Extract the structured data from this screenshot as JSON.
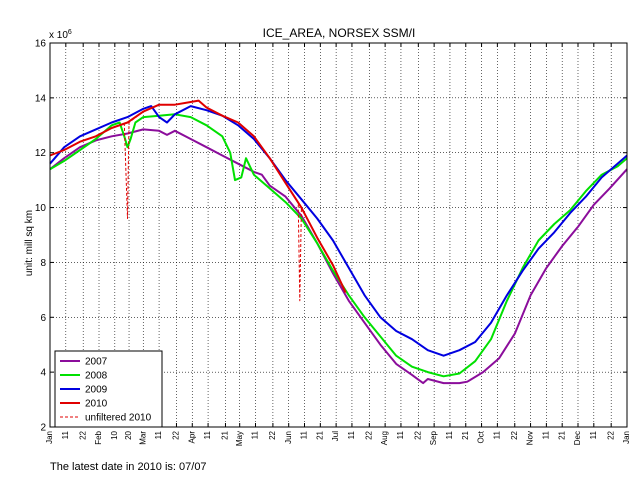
{
  "chart_data": {
    "type": "line",
    "title": "ICE_AREA, NORSEX SSM/I",
    "ylabel": "unit: mill sq km",
    "y_exponent_label": "x 10",
    "y_exponent_sup": "6",
    "xlabel": "",
    "xlim": [
      1,
      366
    ],
    "ylim": [
      2,
      16
    ],
    "yticks": [
      2,
      4,
      6,
      8,
      10,
      12,
      14,
      16
    ],
    "grid": true,
    "legend_placement": "bottom-left",
    "x_ticks": [
      {
        "x": 1,
        "label": "Jan",
        "major": true
      },
      {
        "x": 11,
        "label": "11",
        "major": false
      },
      {
        "x": 22,
        "label": "22",
        "major": false
      },
      {
        "x": 32,
        "label": "Feb",
        "major": true
      },
      {
        "x": 42,
        "label": "10",
        "major": false
      },
      {
        "x": 51,
        "label": "20",
        "major": false
      },
      {
        "x": 60,
        "label": "Mar",
        "major": true
      },
      {
        "x": 70,
        "label": "11",
        "major": false
      },
      {
        "x": 81,
        "label": "22",
        "major": false
      },
      {
        "x": 91,
        "label": "Apr",
        "major": true
      },
      {
        "x": 101,
        "label": "11",
        "major": false
      },
      {
        "x": 112,
        "label": "21",
        "major": false
      },
      {
        "x": 121,
        "label": "May",
        "major": true
      },
      {
        "x": 131,
        "label": "11",
        "major": false
      },
      {
        "x": 142,
        "label": "22",
        "major": false
      },
      {
        "x": 152,
        "label": "Jun",
        "major": true
      },
      {
        "x": 162,
        "label": "11",
        "major": false
      },
      {
        "x": 172,
        "label": "21",
        "major": false
      },
      {
        "x": 182,
        "label": "Jul",
        "major": true
      },
      {
        "x": 192,
        "label": "11",
        "major": false
      },
      {
        "x": 203,
        "label": "22",
        "major": false
      },
      {
        "x": 213,
        "label": "Aug",
        "major": true
      },
      {
        "x": 223,
        "label": "11",
        "major": false
      },
      {
        "x": 234,
        "label": "22",
        "major": false
      },
      {
        "x": 244,
        "label": "Sep",
        "major": true
      },
      {
        "x": 254,
        "label": "11",
        "major": false
      },
      {
        "x": 264,
        "label": "21",
        "major": false
      },
      {
        "x": 274,
        "label": "Oct",
        "major": true
      },
      {
        "x": 284,
        "label": "11",
        "major": false
      },
      {
        "x": 295,
        "label": "22",
        "major": false
      },
      {
        "x": 305,
        "label": "Nov",
        "major": true
      },
      {
        "x": 315,
        "label": "11",
        "major": false
      },
      {
        "x": 325,
        "label": "21",
        "major": false
      },
      {
        "x": 335,
        "label": "Dec",
        "major": true
      },
      {
        "x": 345,
        "label": "11",
        "major": false
      },
      {
        "x": 356,
        "label": "22",
        "major": false
      },
      {
        "x": 366,
        "label": "Jan",
        "major": true
      }
    ],
    "series": [
      {
        "name": "2007",
        "color": "#8b0d9b",
        "dashed": false,
        "points": [
          [
            1,
            11.4
          ],
          [
            10,
            11.8
          ],
          [
            20,
            12.2
          ],
          [
            30,
            12.45
          ],
          [
            40,
            12.6
          ],
          [
            50,
            12.7
          ],
          [
            60,
            12.85
          ],
          [
            70,
            12.8
          ],
          [
            75,
            12.65
          ],
          [
            80,
            12.8
          ],
          [
            90,
            12.5
          ],
          [
            100,
            12.2
          ],
          [
            110,
            11.9
          ],
          [
            120,
            11.6
          ],
          [
            130,
            11.3
          ],
          [
            135,
            11.2
          ],
          [
            140,
            10.8
          ],
          [
            150,
            10.4
          ],
          [
            160,
            9.7
          ],
          [
            170,
            8.7
          ],
          [
            180,
            7.6
          ],
          [
            190,
            6.6
          ],
          [
            200,
            5.8
          ],
          [
            210,
            5.0
          ],
          [
            220,
            4.3
          ],
          [
            230,
            3.9
          ],
          [
            237,
            3.6
          ],
          [
            240,
            3.75
          ],
          [
            250,
            3.6
          ],
          [
            260,
            3.6
          ],
          [
            265,
            3.65
          ],
          [
            275,
            4.0
          ],
          [
            285,
            4.5
          ],
          [
            295,
            5.4
          ],
          [
            305,
            6.8
          ],
          [
            315,
            7.8
          ],
          [
            325,
            8.6
          ],
          [
            335,
            9.3
          ],
          [
            345,
            10.1
          ],
          [
            355,
            10.7
          ],
          [
            366,
            11.4
          ]
        ]
      },
      {
        "name": "2008",
        "color": "#00e000",
        "dashed": false,
        "points": [
          [
            1,
            11.4
          ],
          [
            10,
            11.7
          ],
          [
            20,
            12.1
          ],
          [
            30,
            12.5
          ],
          [
            40,
            13.0
          ],
          [
            45,
            13.1
          ],
          [
            48,
            12.6
          ],
          [
            50,
            12.2
          ],
          [
            52,
            12.5
          ],
          [
            55,
            13.1
          ],
          [
            60,
            13.3
          ],
          [
            70,
            13.35
          ],
          [
            80,
            13.4
          ],
          [
            90,
            13.3
          ],
          [
            100,
            13.0
          ],
          [
            110,
            12.6
          ],
          [
            115,
            12.0
          ],
          [
            118,
            11.0
          ],
          [
            122,
            11.1
          ],
          [
            125,
            11.8
          ],
          [
            130,
            11.2
          ],
          [
            140,
            10.7
          ],
          [
            150,
            10.2
          ],
          [
            160,
            9.6
          ],
          [
            170,
            8.7
          ],
          [
            180,
            7.7
          ],
          [
            190,
            6.8
          ],
          [
            200,
            6.0
          ],
          [
            210,
            5.3
          ],
          [
            220,
            4.6
          ],
          [
            230,
            4.2
          ],
          [
            240,
            4.0
          ],
          [
            250,
            3.85
          ],
          [
            260,
            3.95
          ],
          [
            270,
            4.4
          ],
          [
            280,
            5.2
          ],
          [
            290,
            6.6
          ],
          [
            300,
            7.8
          ],
          [
            310,
            8.8
          ],
          [
            320,
            9.4
          ],
          [
            330,
            9.9
          ],
          [
            340,
            10.6
          ],
          [
            350,
            11.2
          ],
          [
            360,
            11.5
          ],
          [
            366,
            11.8
          ]
        ]
      },
      {
        "name": "2009",
        "color": "#0000e0",
        "dashed": false,
        "points": [
          [
            1,
            11.6
          ],
          [
            10,
            12.2
          ],
          [
            20,
            12.6
          ],
          [
            30,
            12.85
          ],
          [
            40,
            13.1
          ],
          [
            50,
            13.3
          ],
          [
            60,
            13.6
          ],
          [
            65,
            13.7
          ],
          [
            70,
            13.3
          ],
          [
            75,
            13.1
          ],
          [
            80,
            13.4
          ],
          [
            90,
            13.7
          ],
          [
            100,
            13.55
          ],
          [
            110,
            13.35
          ],
          [
            120,
            13.0
          ],
          [
            130,
            12.5
          ],
          [
            140,
            11.8
          ],
          [
            150,
            11.0
          ],
          [
            160,
            10.3
          ],
          [
            170,
            9.6
          ],
          [
            180,
            8.8
          ],
          [
            190,
            7.8
          ],
          [
            200,
            6.8
          ],
          [
            210,
            6.0
          ],
          [
            220,
            5.5
          ],
          [
            230,
            5.2
          ],
          [
            240,
            4.8
          ],
          [
            250,
            4.6
          ],
          [
            260,
            4.8
          ],
          [
            270,
            5.1
          ],
          [
            280,
            5.8
          ],
          [
            290,
            6.8
          ],
          [
            300,
            7.7
          ],
          [
            310,
            8.5
          ],
          [
            320,
            9.1
          ],
          [
            330,
            9.8
          ],
          [
            340,
            10.4
          ],
          [
            350,
            11.1
          ],
          [
            360,
            11.6
          ],
          [
            366,
            11.9
          ]
        ]
      },
      {
        "name": "2010",
        "color": "#e00000",
        "dashed": false,
        "points": [
          [
            1,
            11.9
          ],
          [
            10,
            12.1
          ],
          [
            20,
            12.4
          ],
          [
            30,
            12.6
          ],
          [
            40,
            12.9
          ],
          [
            50,
            13.1
          ],
          [
            60,
            13.5
          ],
          [
            70,
            13.75
          ],
          [
            80,
            13.75
          ],
          [
            90,
            13.85
          ],
          [
            95,
            13.9
          ],
          [
            100,
            13.65
          ],
          [
            110,
            13.35
          ],
          [
            120,
            13.1
          ],
          [
            130,
            12.6
          ],
          [
            140,
            11.8
          ],
          [
            150,
            10.9
          ],
          [
            160,
            10.0
          ],
          [
            170,
            8.9
          ],
          [
            180,
            7.9
          ],
          [
            188,
            6.9
          ]
        ]
      },
      {
        "name": "unfiltered 2010",
        "color": "#e00000",
        "dashed": true,
        "points": [
          [
            1,
            11.9
          ],
          [
            10,
            12.1
          ],
          [
            20,
            12.4
          ],
          [
            30,
            12.6
          ],
          [
            40,
            12.9
          ],
          [
            48,
            13.05
          ],
          [
            50,
            9.6
          ],
          [
            51,
            13.1
          ],
          [
            60,
            13.5
          ],
          [
            70,
            13.75
          ],
          [
            80,
            13.75
          ],
          [
            90,
            13.85
          ],
          [
            95,
            13.9
          ],
          [
            100,
            13.65
          ],
          [
            110,
            13.35
          ],
          [
            120,
            13.1
          ],
          [
            130,
            12.6
          ],
          [
            140,
            11.8
          ],
          [
            150,
            10.9
          ],
          [
            158,
            10.2
          ],
          [
            159,
            6.6
          ],
          [
            160,
            10.0
          ],
          [
            170,
            8.9
          ],
          [
            180,
            7.9
          ],
          [
            188,
            6.9
          ]
        ]
      }
    ]
  },
  "footer": {
    "latest_date_text": "The latest date in 2010 is: 07/07"
  }
}
